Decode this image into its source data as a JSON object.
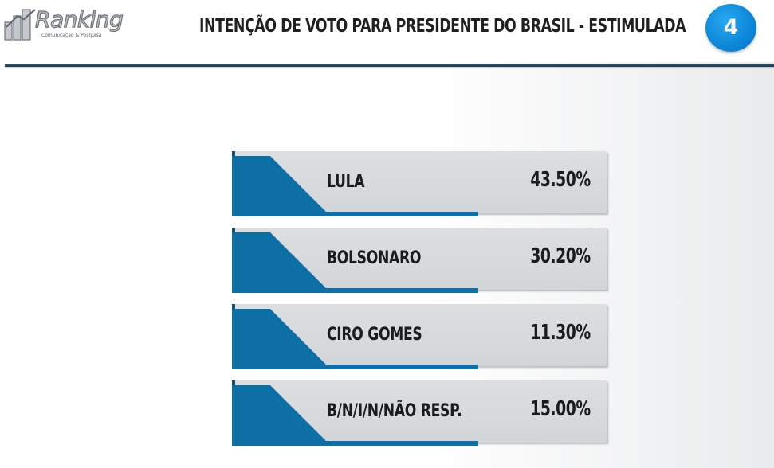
{
  "header": {
    "logo_name": "Ranking",
    "logo_tagline": "Comunicação & Pesquisa",
    "title": "INTENÇÃO DE VOTO PARA PRESIDENTE DO BRASIL - ESTIMULADA",
    "page_number": "4"
  },
  "colors": {
    "accent_blue": "#0d6fa3",
    "row_gray": "#d6d9dc",
    "header_line": "#2a4a61",
    "badge_blue": "#0c86d8"
  },
  "chart_data": {
    "type": "table",
    "categories": [
      "LULA",
      "BOLSONARO",
      "CIRO GOMES",
      "B/N/I/N/NÃO RESP."
    ],
    "values": [
      43.5,
      30.2,
      11.3,
      15.0
    ],
    "value_labels": [
      "43.50%",
      "30.20%",
      "11.30%",
      "15.00%"
    ],
    "title": "INTENÇÃO DE VOTO PARA PRESIDENTE DO BRASIL - ESTIMULADA",
    "unit": "%"
  }
}
